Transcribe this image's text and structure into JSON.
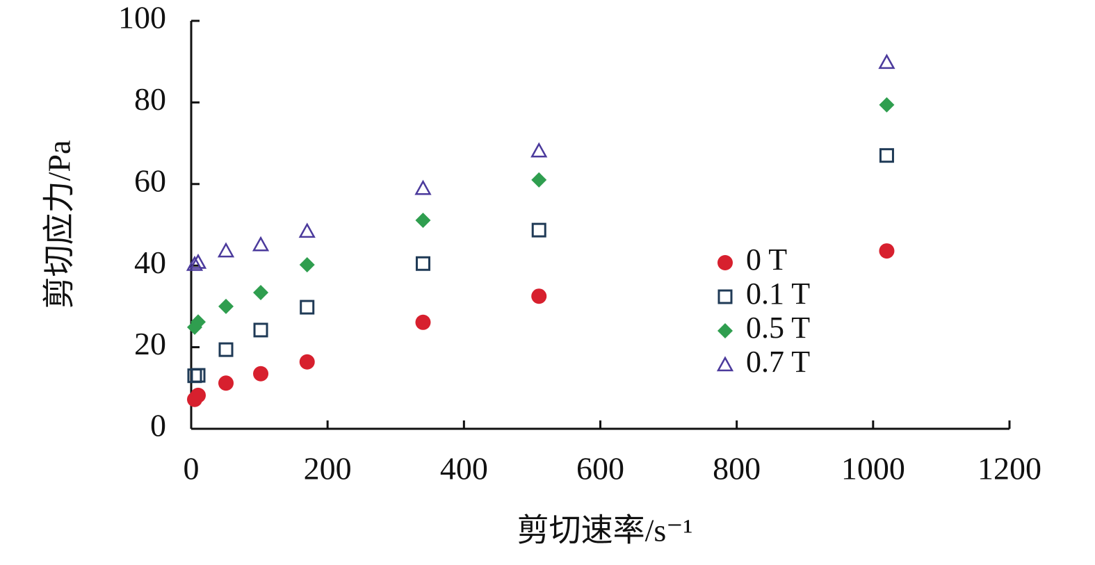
{
  "chart_data": {
    "type": "scatter",
    "x_label": "剪切速率/s⁻¹",
    "y_label": "剪切应力/Pa",
    "xlim": [
      0,
      1200
    ],
    "xticks": [
      0,
      200,
      400,
      600,
      800,
      1000,
      1200
    ],
    "ylim": [
      0,
      100
    ],
    "yticks": [
      0,
      20,
      40,
      60,
      80,
      100
    ],
    "series": [
      {
        "name": "0 T",
        "color": "#d7202e",
        "marker": "circle",
        "x": [
          5.1,
          10.2,
          51,
          102,
          170,
          340,
          510,
          1020
        ],
        "values": [
          7.2,
          8.2,
          11.2,
          13.5,
          16.4,
          26.1,
          32.5,
          43.6
        ]
      },
      {
        "name": "0.1 T",
        "color": "#1f3a56",
        "marker": "square",
        "x": [
          5.1,
          10.2,
          51,
          102,
          170,
          340,
          510,
          1020
        ],
        "values": [
          13.0,
          13.1,
          19.4,
          24.2,
          29.8,
          40.5,
          48.7,
          67.0
        ]
      },
      {
        "name": "0.5 T",
        "color": "#2f9e4f",
        "marker": "diamond",
        "x": [
          5.1,
          10.2,
          51,
          102,
          170,
          340,
          510,
          1020
        ],
        "values": [
          24.9,
          26.2,
          30.0,
          33.4,
          40.2,
          51.1,
          61.0,
          79.4
        ]
      },
      {
        "name": "0.7 T",
        "color": "#4b3a9c",
        "marker": "triangle",
        "x": [
          5.1,
          10.2,
          51,
          102,
          170,
          340,
          510,
          1020
        ],
        "values": [
          40.3,
          40.8,
          43.6,
          45.1,
          48.4,
          58.9,
          68.1,
          89.8
        ]
      }
    ]
  }
}
